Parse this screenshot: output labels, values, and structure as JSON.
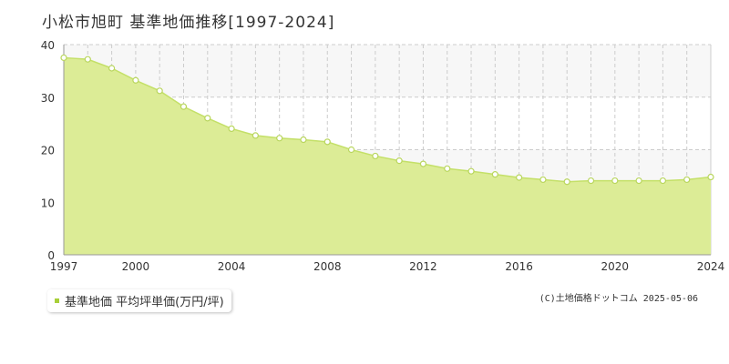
{
  "chart_data": {
    "type": "area",
    "title": "小松市旭町 基準地価推移[1997-2024]",
    "x": [
      1997,
      1998,
      1999,
      2000,
      2001,
      2002,
      2003,
      2004,
      2005,
      2006,
      2007,
      2008,
      2009,
      2010,
      2011,
      2012,
      2013,
      2014,
      2015,
      2016,
      2017,
      2018,
      2019,
      2020,
      2021,
      2022,
      2023,
      2024
    ],
    "series": [
      {
        "name": "基準地価 平均坪単価(万円/坪)",
        "values": [
          37.5,
          37.2,
          35.5,
          33.2,
          31.2,
          28.2,
          26.0,
          24.0,
          22.7,
          22.2,
          21.9,
          21.5,
          20.0,
          18.8,
          17.9,
          17.3,
          16.4,
          15.9,
          15.3,
          14.7,
          14.3,
          13.9,
          14.1,
          14.1,
          14.1,
          14.1,
          14.3,
          14.8
        ]
      }
    ],
    "ylim": [
      0,
      40
    ],
    "xlim": [
      1997,
      2024
    ],
    "y_ticks": [
      0,
      10,
      20,
      30,
      40
    ],
    "x_tick_labels": [
      "1997",
      "2000",
      "2004",
      "2008",
      "2012",
      "2016",
      "2020",
      "2024"
    ],
    "grid": true,
    "legend_position": "bottom-left",
    "xlabel": "",
    "ylabel": ""
  },
  "credit": "(C)土地価格ドットコム 2025-05-06",
  "colors": {
    "fill": "#dcec96",
    "line": "#c4e068",
    "marker_fill": "#ffffff",
    "marker_stroke": "#b9d65e",
    "band": "#f7f7f7",
    "grid": "#cccccc",
    "axis": "#999999",
    "legend_swatch": "#a8cf38"
  }
}
